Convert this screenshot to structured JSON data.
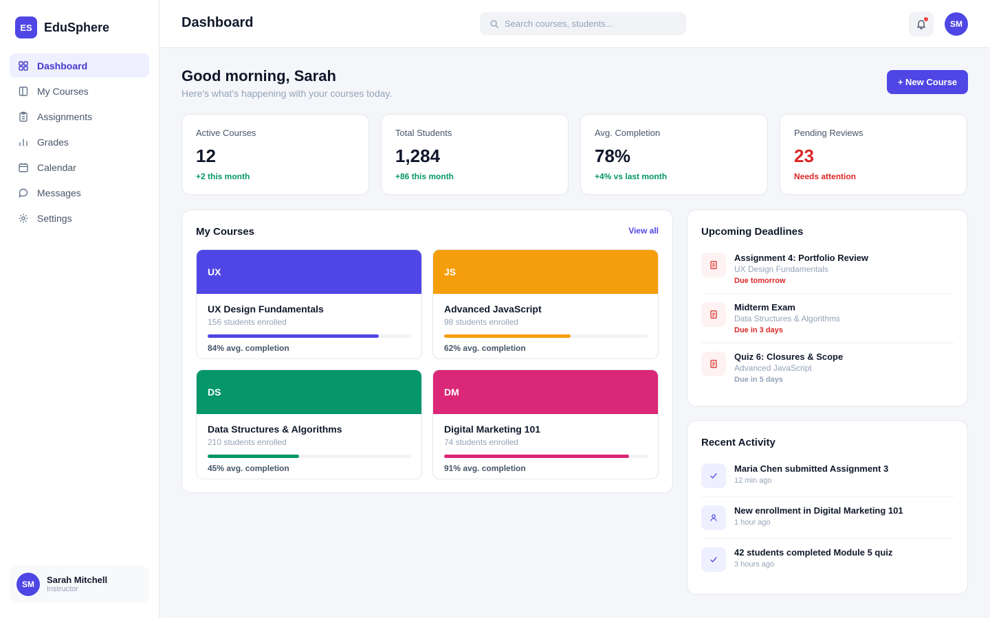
{
  "brand": {
    "logo": "ES",
    "name": "EduSphere"
  },
  "nav": [
    {
      "label": "Dashboard",
      "icon": "grid-icon",
      "active": true
    },
    {
      "label": "My Courses",
      "icon": "book-icon"
    },
    {
      "label": "Assignments",
      "icon": "clipboard-icon"
    },
    {
      "label": "Grades",
      "icon": "bar-chart-icon"
    },
    {
      "label": "Calendar",
      "icon": "calendar-icon"
    },
    {
      "label": "Messages",
      "icon": "message-icon"
    },
    {
      "label": "Settings",
      "icon": "gear-icon"
    }
  ],
  "user": {
    "initials": "SM",
    "name": "Sarah Mitchell",
    "role": "Instructor"
  },
  "header": {
    "title": "Dashboard",
    "search_placeholder": "Search courses, students..."
  },
  "greeting": {
    "title": "Good morning, Sarah",
    "subtitle": "Here's what's happening with your courses today.",
    "new_course_label": "+ New Course"
  },
  "stats": [
    {
      "label": "Active Courses",
      "value": "12",
      "delta": "+2 this month",
      "tone": "green"
    },
    {
      "label": "Total Students",
      "value": "1,284",
      "delta": "+86 this month",
      "tone": "green"
    },
    {
      "label": "Avg. Completion",
      "value": "78%",
      "delta": "+4% vs last month",
      "tone": "green"
    },
    {
      "label": "Pending Reviews",
      "value": "23",
      "delta": "Needs attention",
      "tone": "red"
    }
  ],
  "courses_panel": {
    "title": "My Courses",
    "view_all": "View all",
    "courses": [
      {
        "code": "UX",
        "name": "UX Design Fundamentals",
        "students": "156 students enrolled",
        "completion": 0.84,
        "completion_label": "84% avg. completion",
        "color": "#4f46e5"
      },
      {
        "code": "JS",
        "name": "Advanced JavaScript",
        "students": "98 students enrolled",
        "completion": 0.62,
        "completion_label": "62% avg. completion",
        "color": "#f59e0b"
      },
      {
        "code": "DS",
        "name": "Data Structures & Algorithms",
        "students": "210 students enrolled",
        "completion": 0.45,
        "completion_label": "45% avg. completion",
        "color": "#059669"
      },
      {
        "code": "DM",
        "name": "Digital Marketing 101",
        "students": "74 students enrolled",
        "completion": 0.91,
        "completion_label": "91% avg. completion",
        "color": "#db2777"
      }
    ]
  },
  "deadlines": {
    "title": "Upcoming Deadlines",
    "items": [
      {
        "title": "Assignment 4: Portfolio Review",
        "course": "UX Design Fundamentals",
        "due": "Due tomorrow",
        "urgent": true
      },
      {
        "title": "Midterm Exam",
        "course": "Data Structures & Algorithms",
        "due": "Due in 3 days",
        "urgent": true
      },
      {
        "title": "Quiz 6: Closures & Scope",
        "course": "Advanced JavaScript",
        "due": "Due in 5 days",
        "urgent": false
      }
    ]
  },
  "activity": {
    "title": "Recent Activity",
    "items": [
      {
        "text": "Maria Chen submitted Assignment 3",
        "time": "12 min ago",
        "icon": "check-icon"
      },
      {
        "text": "New enrollment in Digital Marketing 101",
        "time": "1 hour ago",
        "icon": "user-icon"
      },
      {
        "text": "42 students completed Module 5 quiz",
        "time": "3 hours ago",
        "icon": "check-icon"
      }
    ]
  },
  "colors": {
    "accent": "#4f46e5",
    "positive": "#059669",
    "negative": "#dc2626"
  }
}
